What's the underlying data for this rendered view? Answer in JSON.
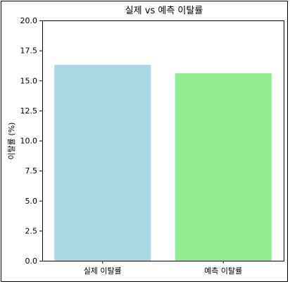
{
  "chart_data": {
    "type": "bar",
    "title": "실제 vs 예측 이탈률",
    "categories": [
      "실제 이탈률",
      "예측 이탈률"
    ],
    "values": [
      16.3,
      15.6
    ],
    "colors": [
      "#add8e6",
      "#90ee90"
    ],
    "xlabel": "",
    "ylabel": "이탈률 (%)",
    "ylim": [
      0,
      20
    ],
    "yticks": [
      "0.0",
      "2.5",
      "5.0",
      "7.5",
      "10.0",
      "12.5",
      "15.0",
      "17.5",
      "20.0"
    ],
    "grid": false
  }
}
